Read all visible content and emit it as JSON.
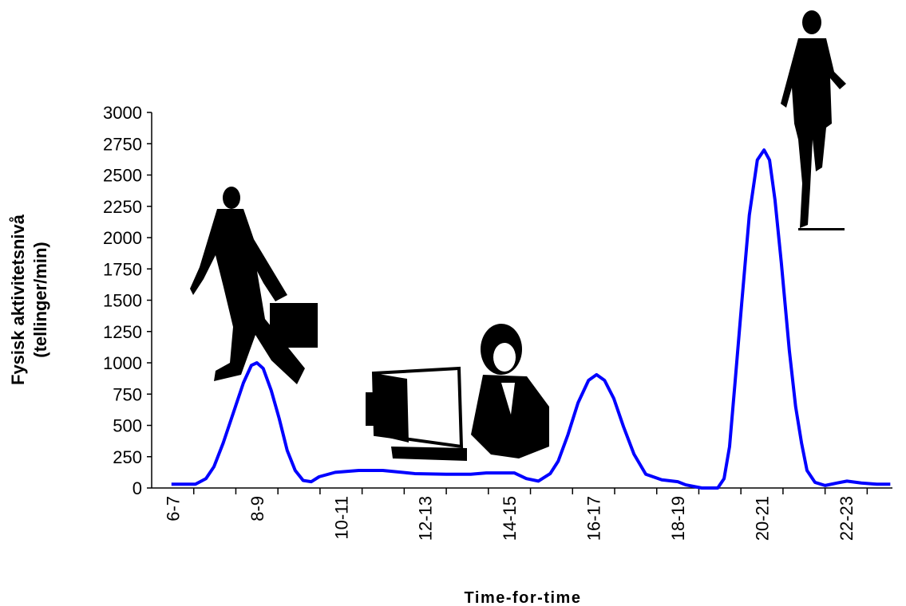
{
  "chart_data": {
    "type": "line",
    "x_label": "Time-for-time",
    "y_label": [
      "Fysisk aktivitetsnivå",
      "(tellinger/min)"
    ],
    "xlim": [
      6,
      23.6
    ],
    "ylim": [
      0,
      3000
    ],
    "yticks": [
      0,
      250,
      500,
      750,
      1000,
      1250,
      1500,
      1750,
      2000,
      2250,
      2500,
      2750,
      3000
    ],
    "xticks": [
      {
        "value": 6.5,
        "label": "6-7"
      },
      {
        "value": 8.5,
        "label": "8-9"
      },
      {
        "value": 10.5,
        "label": "10-11"
      },
      {
        "value": 12.5,
        "label": "12-13"
      },
      {
        "value": 14.5,
        "label": "14-15"
      },
      {
        "value": 16.5,
        "label": "16-17"
      },
      {
        "value": 18.5,
        "label": "18-19"
      },
      {
        "value": 20.5,
        "label": "20-21"
      },
      {
        "value": 22.5,
        "label": "22-23"
      }
    ],
    "xtick_marks": [
      7,
      8,
      9,
      10,
      11,
      12,
      13,
      14,
      15,
      16,
      17,
      18,
      19,
      20,
      21,
      22,
      23
    ],
    "series": [
      {
        "color": "#0000ff",
        "x": [
          6.47,
          7.04,
          7.29,
          7.48,
          7.7,
          7.99,
          8.18,
          8.37,
          8.5,
          8.65,
          8.84,
          9.03,
          9.22,
          9.41,
          9.6,
          9.79,
          9.98,
          10.36,
          10.92,
          11.49,
          12.25,
          13.0,
          13.58,
          13.95,
          14.62,
          14.9,
          15.19,
          15.47,
          15.66,
          15.89,
          16.13,
          16.38,
          16.57,
          16.76,
          16.98,
          17.21,
          17.46,
          17.74,
          18.12,
          18.5,
          18.69,
          19.07,
          19.45,
          19.6,
          19.73,
          19.86,
          20.02,
          20.2,
          20.39,
          20.55,
          20.68,
          20.81,
          20.96,
          21.15,
          21.3,
          21.44,
          21.57,
          21.76,
          22.0,
          22.29,
          22.52,
          22.86,
          23.23,
          23.55
        ],
        "values": [
          30,
          30,
          75,
          170,
          360,
          650,
          840,
          980,
          1000,
          955,
          780,
          555,
          300,
          140,
          60,
          50,
          90,
          125,
          140,
          140,
          115,
          110,
          110,
          120,
          120,
          75,
          55,
          115,
          215,
          425,
          680,
          860,
          905,
          860,
          715,
          490,
          270,
          110,
          65,
          50,
          25,
          0,
          0,
          75,
          330,
          840,
          1480,
          2180,
          2620,
          2700,
          2620,
          2300,
          1800,
          1100,
          650,
          360,
          140,
          45,
          20,
          40,
          55,
          40,
          30,
          30
        ]
      }
    ]
  }
}
